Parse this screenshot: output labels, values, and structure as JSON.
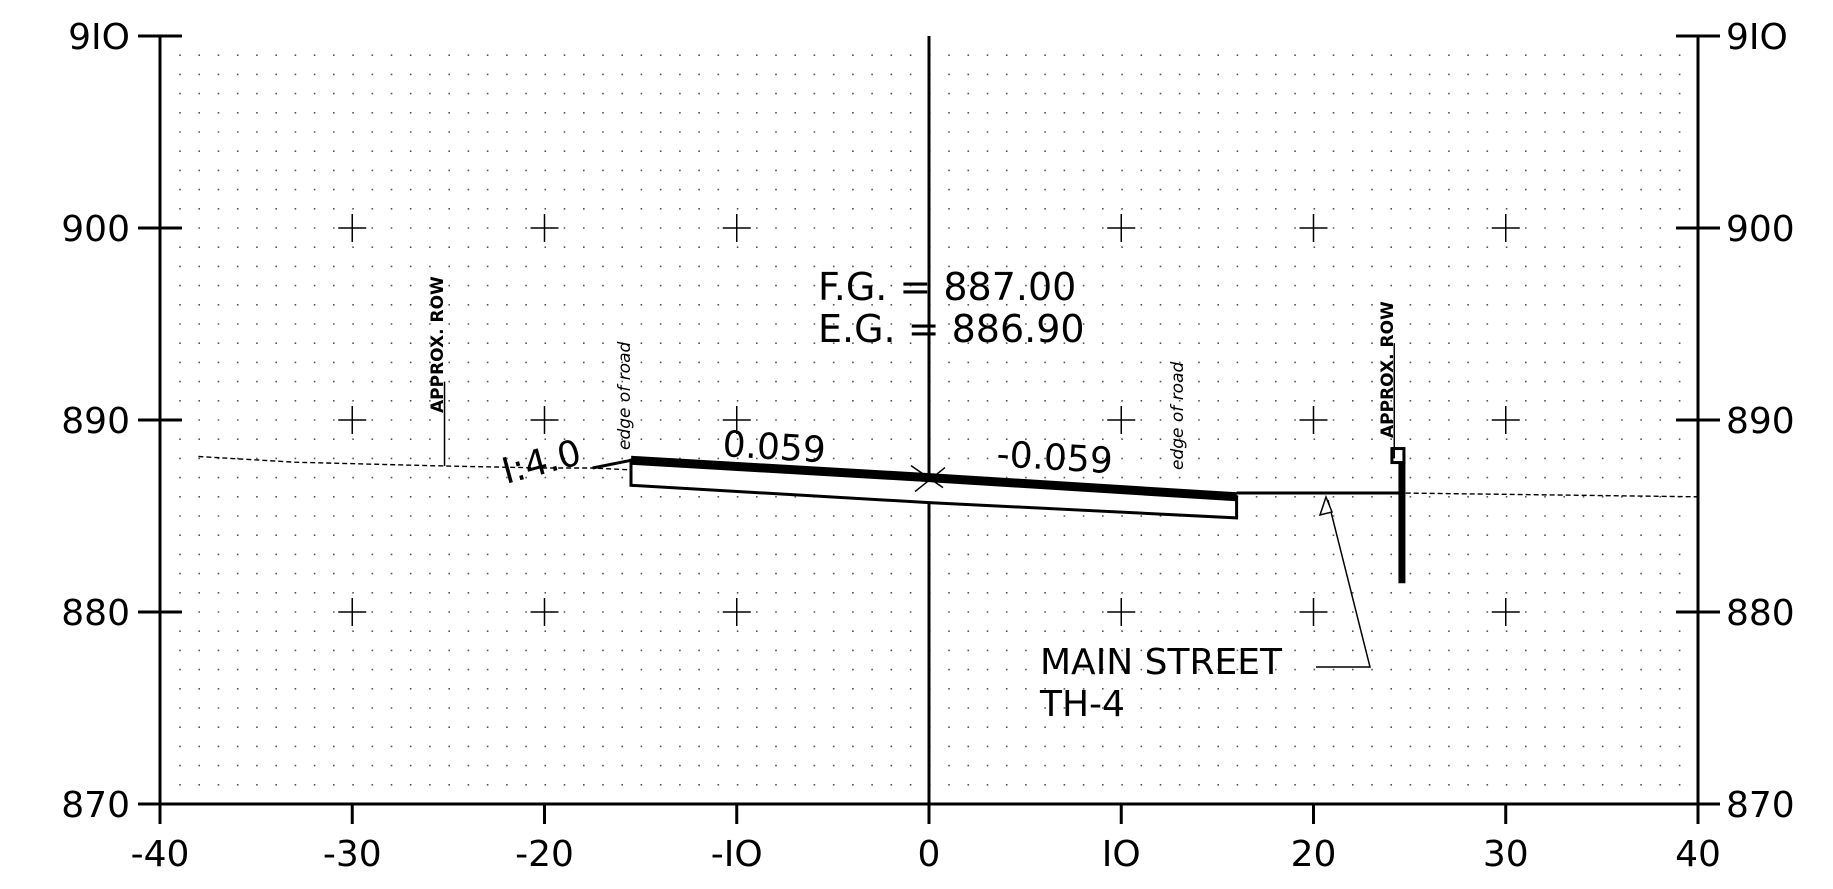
{
  "chart_data": {
    "type": "cross-section",
    "xlim": [
      -40,
      40
    ],
    "ylim": [
      870,
      910
    ],
    "x_ticks": [
      -40,
      -30,
      -20,
      -10,
      0,
      10,
      20,
      30,
      40
    ],
    "x_tick_labels": [
      "-40",
      "-30",
      "-20",
      "-IO",
      "0",
      "IO",
      "20",
      "30",
      "40"
    ],
    "y_ticks": [
      870,
      880,
      890,
      900,
      910
    ],
    "y_tick_labels": [
      "870",
      "880",
      "890",
      "900",
      "9IO"
    ],
    "grid": "dotted, 1-unit spacing; crosses at 10-unit intersections",
    "existing_ground": [
      {
        "x": -38,
        "y": 888.1
      },
      {
        "x": -33,
        "y": 887.8
      },
      {
        "x": -25,
        "y": 887.6
      },
      {
        "x": -20,
        "y": 887.5
      },
      {
        "x": -17.5,
        "y": 887.5
      },
      {
        "x": -15.5,
        "y": 887.4
      },
      {
        "x": 0,
        "y": 886.9
      },
      {
        "x": 16,
        "y": 886.2
      },
      {
        "x": 24.5,
        "y": 886.2
      },
      {
        "x": 40,
        "y": 886.0
      }
    ],
    "finished_grade_top": [
      {
        "x": -15.5,
        "y": 887.9
      },
      {
        "x": 0,
        "y": 887.0
      },
      {
        "x": 16,
        "y": 886.0
      }
    ],
    "pavement_bottom": [
      {
        "x": -15.5,
        "y": 886.6
      },
      {
        "x": 0,
        "y": 885.7
      },
      {
        "x": 16,
        "y": 884.9
      }
    ],
    "left_foreslope": [
      {
        "x": -17.5,
        "y": 887.5
      },
      {
        "x": -15.5,
        "y": 887.9
      }
    ],
    "right_shoulder": [
      {
        "x": 16,
        "y": 886.2
      },
      {
        "x": 24.5,
        "y": 886.2
      }
    ],
    "vertical_post": {
      "x": 24.6,
      "y_top": 888.2,
      "y_bottom": 881.5
    },
    "row_markers": [
      {
        "x": -25.2,
        "y_top": 892.0,
        "y_bottom": 887.6
      },
      {
        "x": 24.2,
        "y_top": 894.0,
        "y_bottom": 888.0
      }
    ],
    "edge_of_road_x": [
      -16.5,
      12.5
    ]
  },
  "annotations": {
    "fg": "F.G. = 887.00",
    "eg": "E.G. = 886.90",
    "slope_left": "0.059",
    "slope_right": "-0.059",
    "side_slope": "I:4.0",
    "edge_left": "edge of road",
    "edge_right": "edge of road",
    "row_left": "APPROX. ROW",
    "row_right": "APPROX. ROW",
    "street_name": "MAIN STREET",
    "street_route": "TH-4"
  }
}
